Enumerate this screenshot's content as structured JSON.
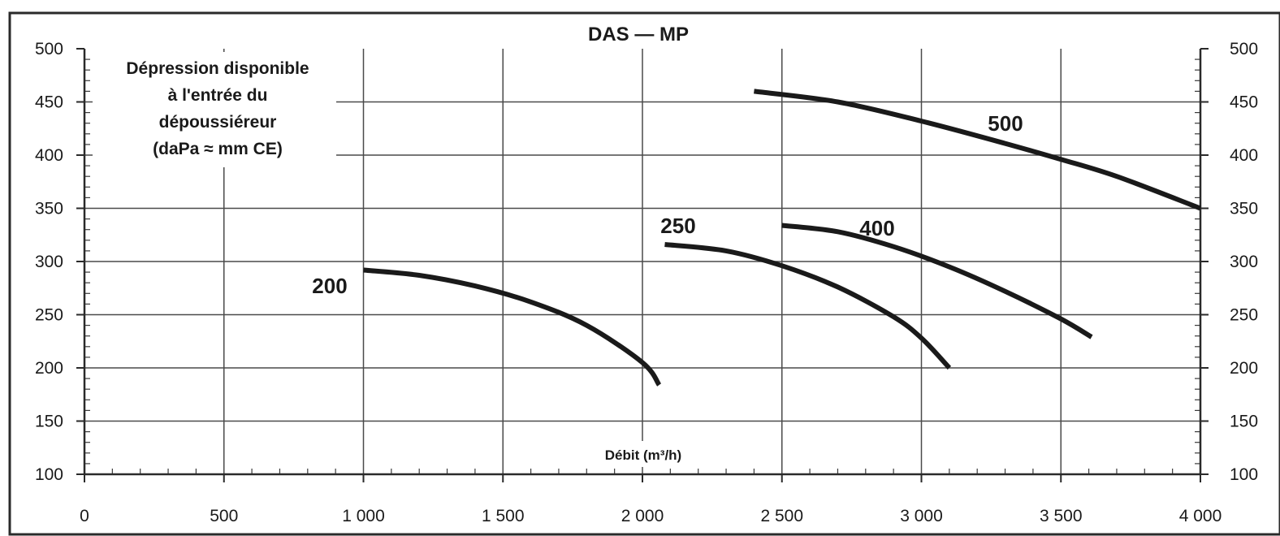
{
  "chart_data": {
    "type": "line",
    "title": "DAS — MP",
    "ylabel_lines": [
      "Dépression disponible",
      "à l'entrée du",
      "dépoussiéreur",
      "(daPa ≈ mm CE)"
    ],
    "xlabel": "Débit (m³/h)",
    "xlim": [
      0,
      4000
    ],
    "ylim": [
      100,
      500
    ],
    "x_ticks": [
      0,
      500,
      1000,
      1500,
      2000,
      2500,
      3000,
      3500,
      4000
    ],
    "x_tick_labels": [
      "0",
      "500",
      "1 000",
      "1 500",
      "2 000",
      "2 500",
      "3 000",
      "3 500",
      "4 000"
    ],
    "y_ticks": [
      100,
      150,
      200,
      250,
      300,
      350,
      400,
      450,
      500
    ],
    "y_tick_labels": [
      "100",
      "150",
      "200",
      "250",
      "300",
      "350",
      "400",
      "450",
      "500"
    ],
    "grid": true,
    "series": [
      {
        "name": "200",
        "x": [
          1000,
          1200,
          1400,
          1600,
          1800,
          2000,
          2060
        ],
        "y": [
          292,
          287,
          277,
          262,
          240,
          205,
          184
        ]
      },
      {
        "name": "250",
        "x": [
          2080,
          2300,
          2500,
          2700,
          2900,
          3000,
          3100
        ],
        "y": [
          316,
          310,
          296,
          276,
          248,
          228,
          200
        ]
      },
      {
        "name": "400",
        "x": [
          2500,
          2700,
          2900,
          3100,
          3300,
          3500,
          3610
        ],
        "y": [
          334,
          328,
          314,
          295,
          272,
          246,
          229
        ]
      },
      {
        "name": "500",
        "x": [
          2400,
          2700,
          3000,
          3300,
          3500,
          3700,
          4000
        ],
        "y": [
          460,
          450,
          432,
          411,
          396,
          380,
          350
        ]
      }
    ]
  }
}
